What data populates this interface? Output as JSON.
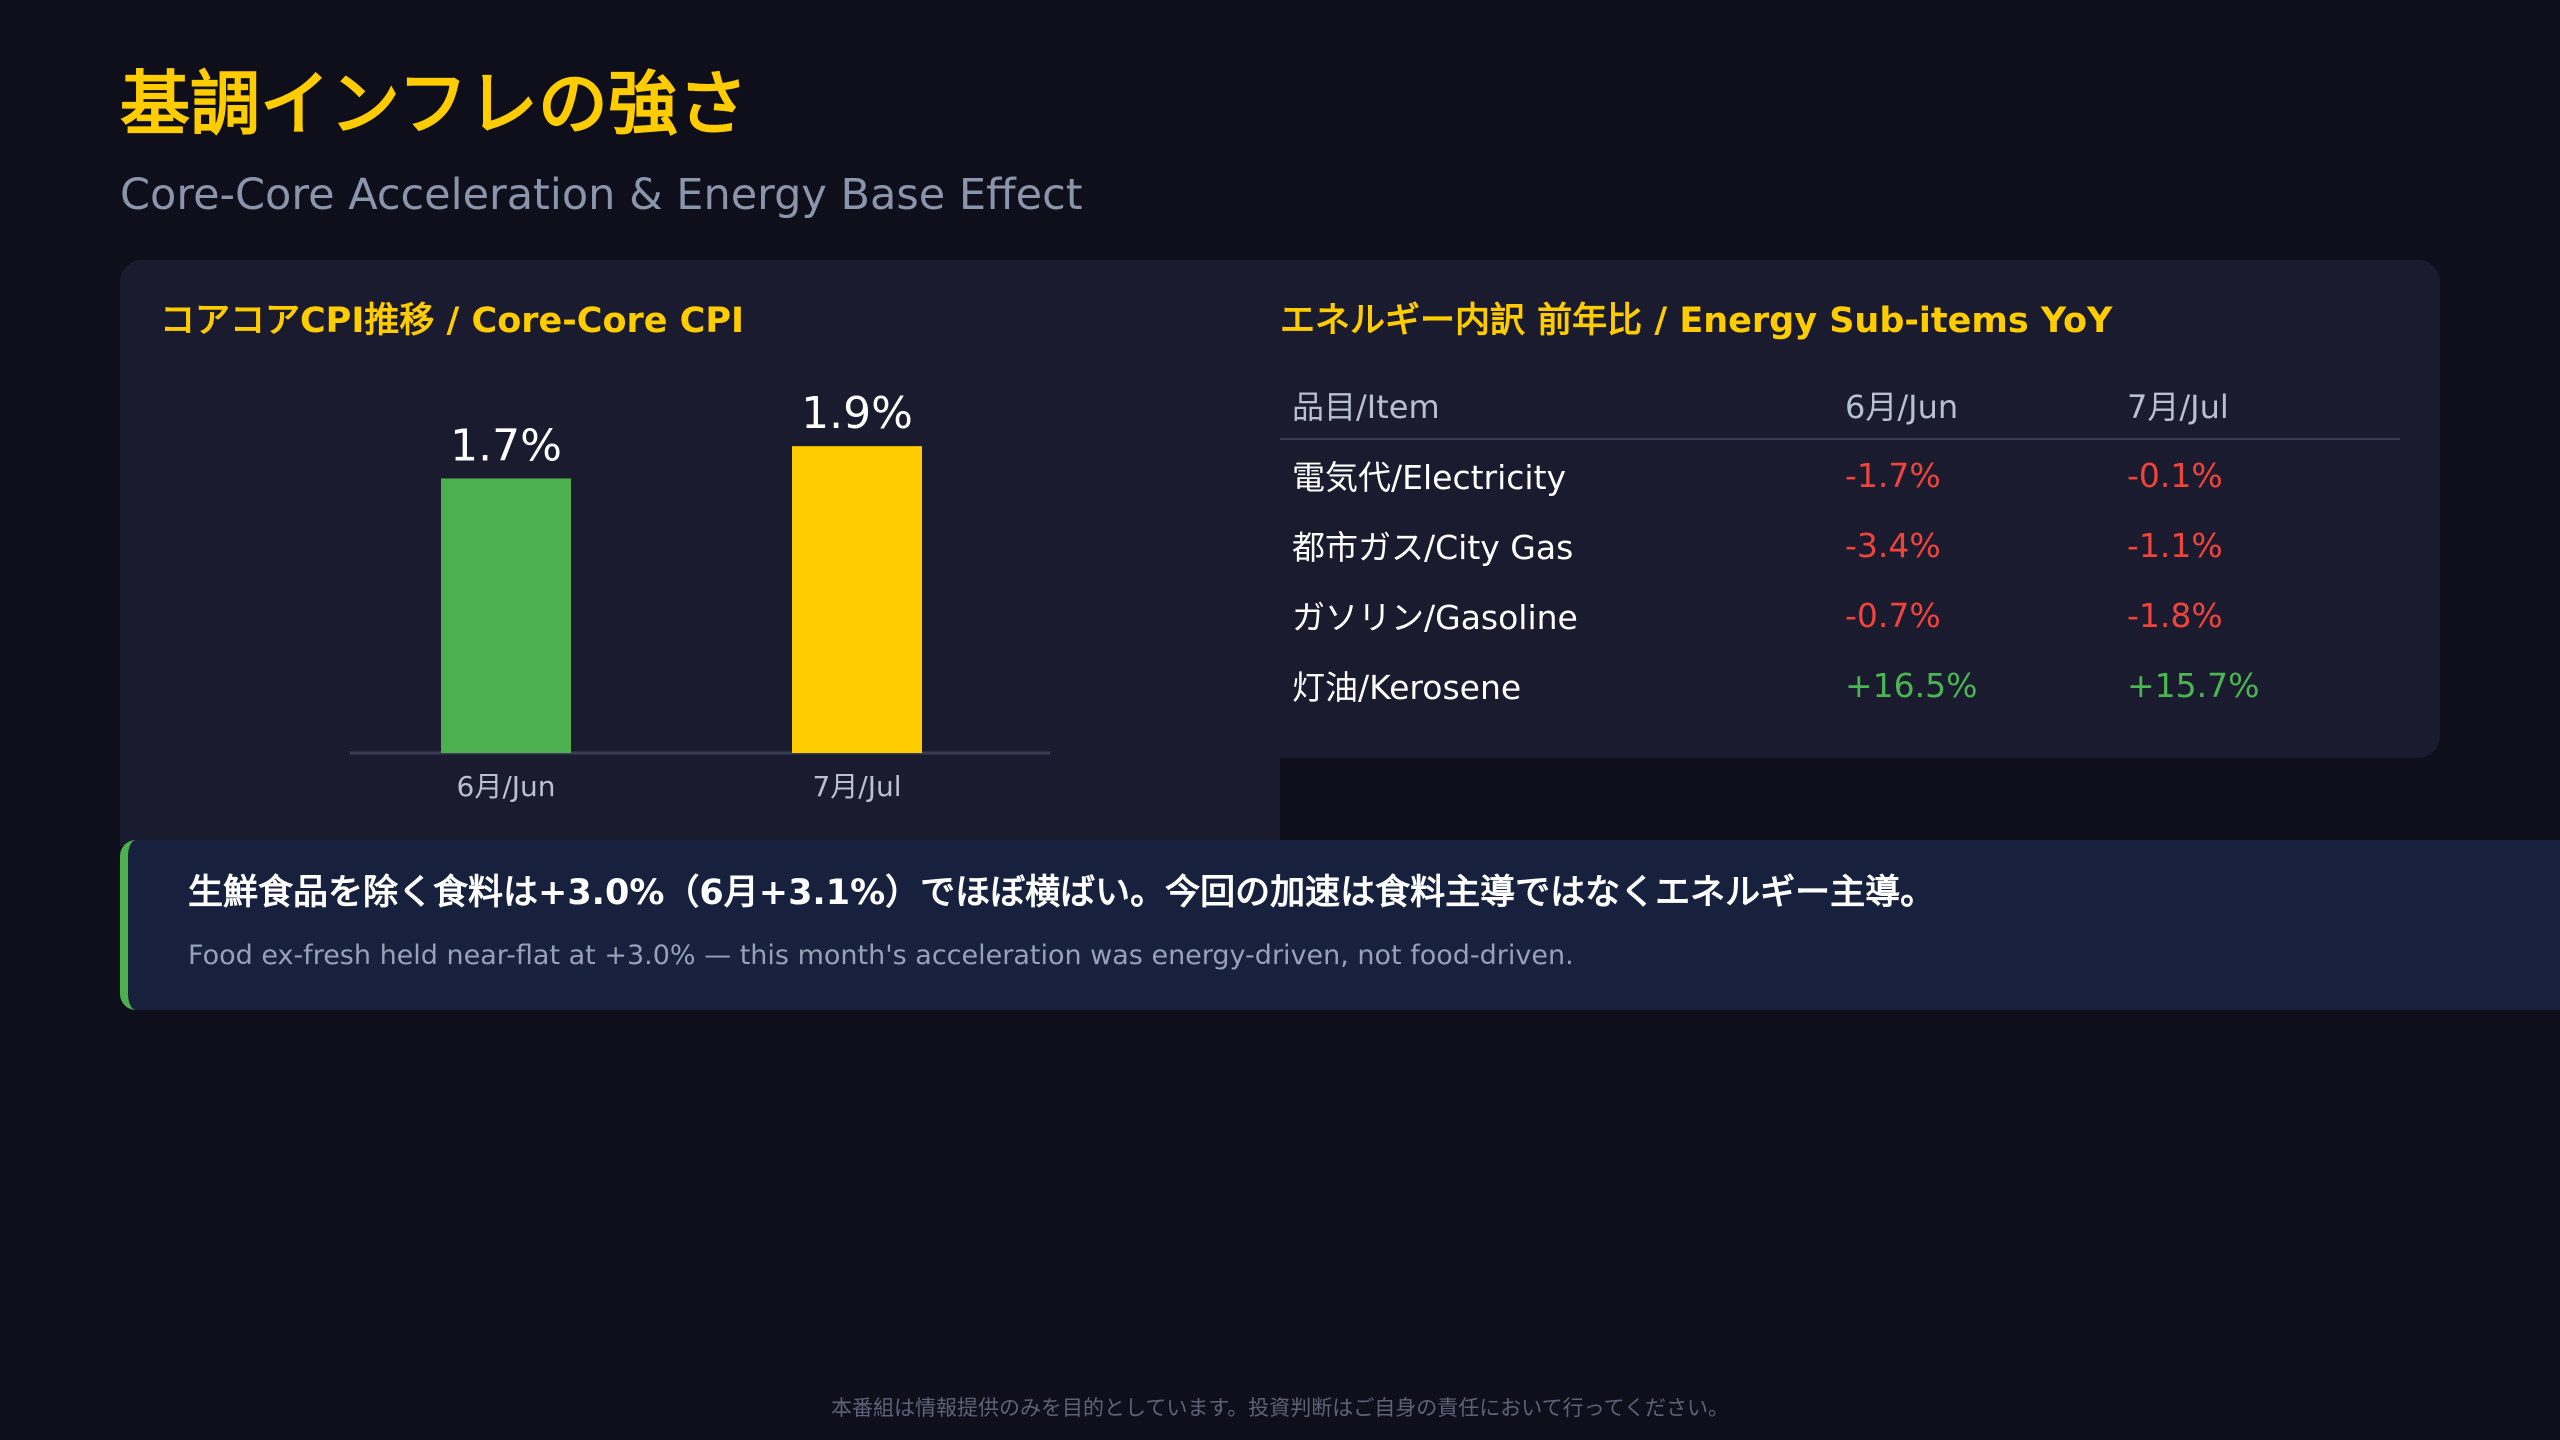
{
  "header": {
    "title": "基調インフレの強さ",
    "subtitle": "Core-Core Acceleration & Energy Base Effect"
  },
  "left_panel": {
    "title": "コアコアCPI推移 / Core-Core CPI"
  },
  "chart_data": {
    "type": "bar",
    "title": "コアコアCPI推移 / Core-Core CPI",
    "categories": [
      "6月/Jun",
      "7月/Jul"
    ],
    "values": [
      1.7,
      1.9
    ],
    "data_labels": [
      "1.7%",
      "1.9%"
    ],
    "colors": [
      "#4caf50",
      "#ffcc00"
    ],
    "ylim": [
      0,
      2.0
    ],
    "xlabel": "",
    "ylabel": "",
    "grid": false,
    "legend": "none"
  },
  "right_panel": {
    "title": "エネルギー内訳 前年比 / Energy Sub-items YoY",
    "columns": [
      "品目/Item",
      "6月/Jun",
      "7月/Jul"
    ],
    "rows": [
      {
        "item": "電気代/Electricity",
        "jun": "-1.7%",
        "jul": "-0.1%"
      },
      {
        "item": "都市ガス/City Gas",
        "jun": "-3.4%",
        "jul": "-1.1%"
      },
      {
        "item": "ガソリン/Gasoline",
        "jun": "-0.7%",
        "jul": "-1.8%"
      },
      {
        "item": "灯油/Kerosene",
        "jun": "+16.5%",
        "jul": "+15.7%"
      }
    ],
    "colors": {
      "negative": "#f0433b",
      "positive": "#4ab552"
    }
  },
  "callout": {
    "main": "生鮮食品を除く食料は+3.0%（6月+3.1%）でほぼ横ばい。今回の加速は食料主導ではなくエネルギー主導。",
    "sub": "Food ex-fresh held near-flat at +3.0% — this month's acceleration was energy-driven, not food-driven.",
    "accent": "#4caf50"
  },
  "footer": {
    "disclaimer": "本番組は情報提供のみを目的としています。投資判断はご自身の責任において行ってください。"
  }
}
